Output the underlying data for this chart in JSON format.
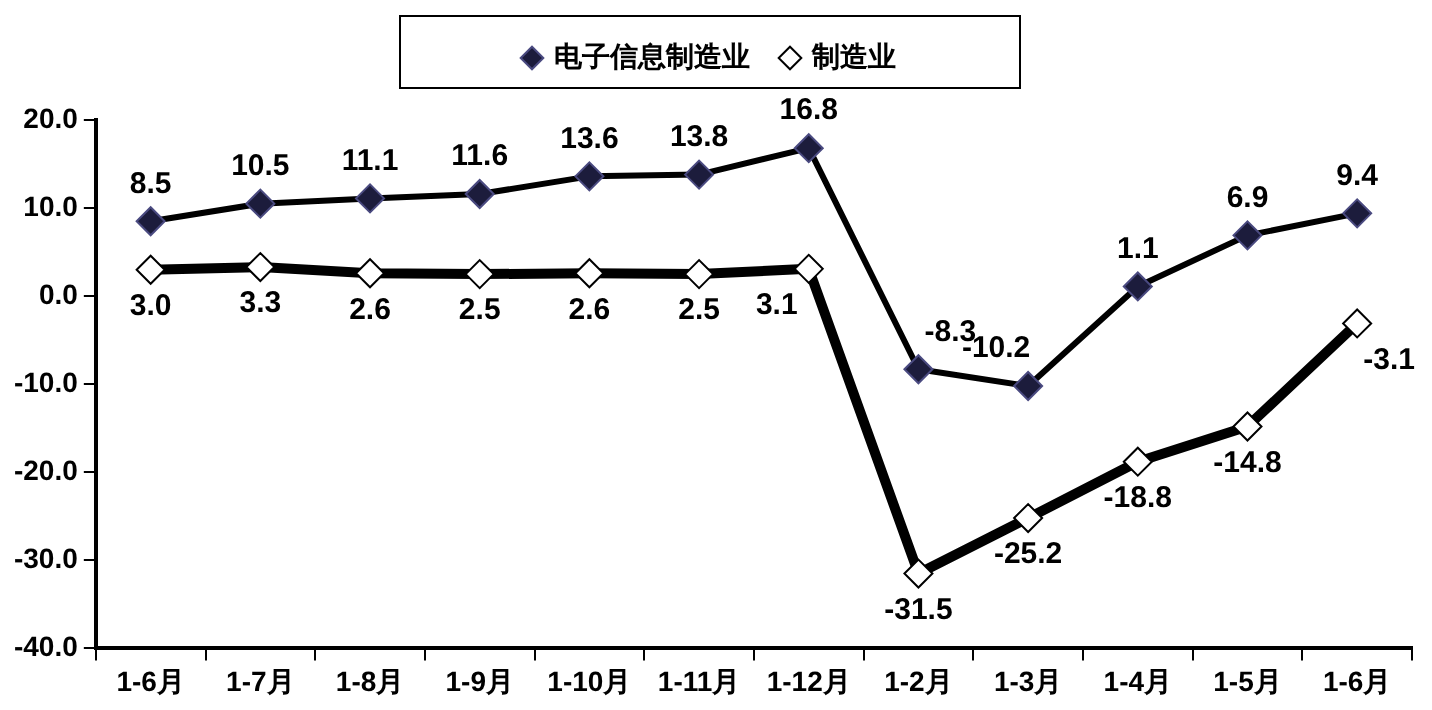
{
  "chart_data": {
    "type": "line",
    "categories": [
      "1-6月",
      "1-7月",
      "1-8月",
      "1-9月",
      "1-10月",
      "1-11月",
      "1-12月",
      "1-2月",
      "1-3月",
      "1-4月",
      "1-5月",
      "1-6月"
    ],
    "series": [
      {
        "name": "电子信息制造业",
        "color": "#000000",
        "values": [
          8.5,
          10.5,
          11.1,
          11.6,
          13.6,
          13.8,
          16.8,
          -8.3,
          -10.2,
          1.1,
          6.9,
          9.4
        ],
        "value_labels": [
          "8.5",
          "10.5",
          "11.1",
          "11.6",
          "13.6",
          "13.8",
          "16.8",
          "-8.3",
          "-10.2",
          "1.1",
          "6.9",
          "9.4"
        ]
      },
      {
        "name": "制造业",
        "color": "#000000",
        "values": [
          3.0,
          3.3,
          2.6,
          2.5,
          2.6,
          2.5,
          3.1,
          -31.5,
          -25.2,
          -18.8,
          -14.8,
          -3.1
        ],
        "value_labels": [
          "3.0",
          "3.3",
          "2.6",
          "2.5",
          "2.6",
          "2.5",
          "3.1",
          "-31.5",
          "-25.2",
          "-18.8",
          "-14.8",
          "-3.1"
        ]
      }
    ],
    "ylim": [
      -40,
      20
    ],
    "yticks": [
      {
        "value": -40,
        "label": "-40.0"
      },
      {
        "value": -30,
        "label": "-30.0"
      },
      {
        "value": -20,
        "label": "-20.0"
      },
      {
        "value": -10,
        "label": "-10.0"
      },
      {
        "value": 0,
        "label": "0.0"
      },
      {
        "value": 10,
        "label": "10.0"
      },
      {
        "value": 20,
        "label": "20.0"
      }
    ],
    "grid": false,
    "legend": "top",
    "marker": "diamond",
    "line_style": "solid"
  }
}
